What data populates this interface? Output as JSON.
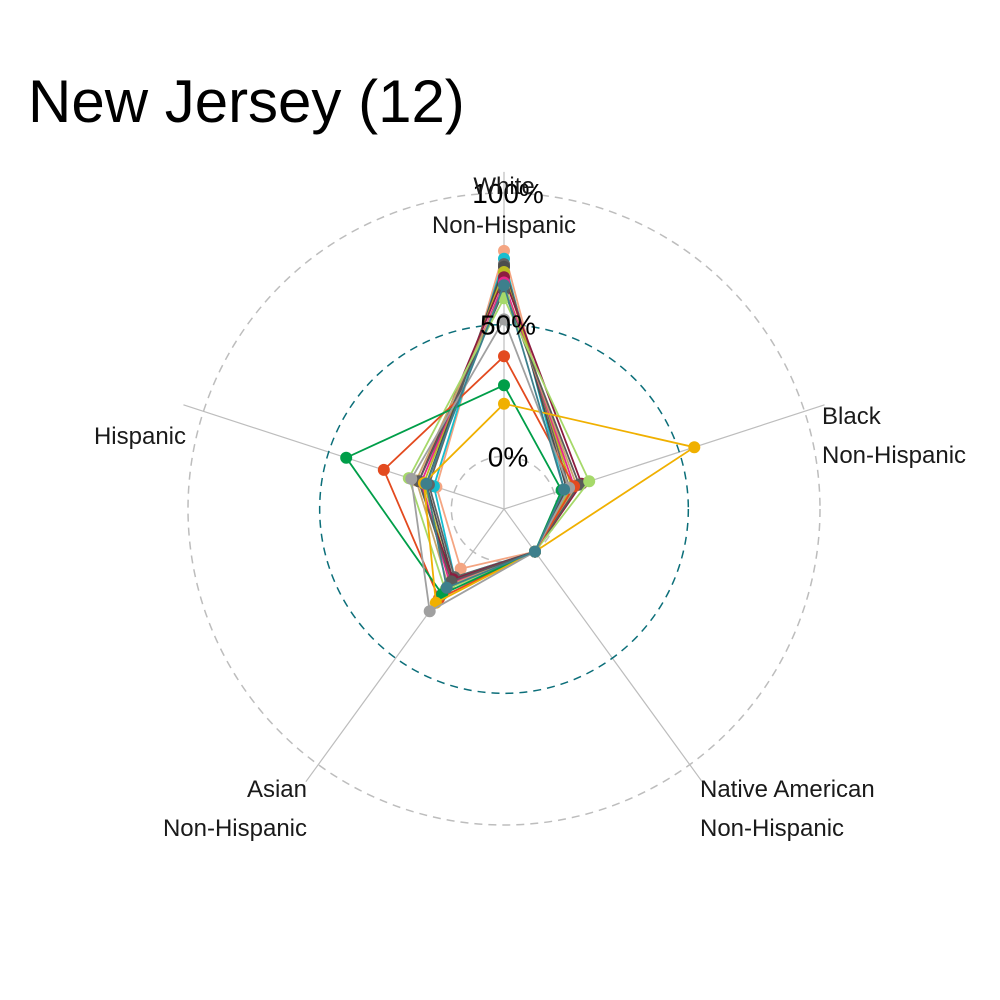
{
  "chart_data": {
    "type": "radar",
    "title": "New Jersey (12)",
    "axes": [
      {
        "line1": "White",
        "line2": "Non-Hispanic"
      },
      {
        "line1": "Black",
        "line2": "Non-Hispanic"
      },
      {
        "line1": "Native American",
        "line2": "Non-Hispanic"
      },
      {
        "line1": "Asian",
        "line2": "Non-Hispanic"
      },
      {
        "line1": "Hispanic",
        "line2": ""
      }
    ],
    "grid_labels": [
      "0%",
      "50%",
      "100%"
    ],
    "rlim": [
      -20,
      100
    ],
    "grid_values": [
      0,
      50,
      100
    ],
    "grid_colors": {
      "outer": "#bdbdbd",
      "middle": "#0b6e79",
      "inner": "#bdbdbd",
      "spokes": "#bdbdbd"
    },
    "legend": "none",
    "series": [
      {
        "color": "#f4a582",
        "values": [
          78,
          5,
          0,
          8,
          7
        ]
      },
      {
        "color": "#17becf",
        "values": [
          75,
          4,
          0,
          12,
          8
        ]
      },
      {
        "color": "#636363",
        "values": [
          73,
          6,
          0,
          12,
          10
        ]
      },
      {
        "color": "#4d4d4d",
        "values": [
          72,
          5,
          0,
          13,
          11
        ]
      },
      {
        "color": "#bcbd22",
        "values": [
          70,
          7,
          0,
          14,
          12
        ]
      },
      {
        "color": "#8c1d40",
        "values": [
          68,
          11,
          0,
          13,
          14
        ]
      },
      {
        "color": "#e7298a",
        "values": [
          66,
          8,
          0,
          15,
          13
        ]
      },
      {
        "color": "#c7a76c",
        "values": [
          64,
          9,
          0,
          16,
          15
        ]
      },
      {
        "color": "#5a5a5a",
        "values": [
          63,
          10,
          0,
          14,
          14
        ]
      },
      {
        "color": "#a6d96a",
        "values": [
          60,
          14,
          0,
          18,
          18
        ]
      },
      {
        "color": "#e34a1f",
        "values": [
          38,
          8,
          0,
          22,
          28
        ]
      },
      {
        "color": "#009e49",
        "values": [
          27,
          3,
          0,
          20,
          43
        ]
      },
      {
        "color": "#f0b000",
        "values": [
          20,
          56,
          0,
          24,
          12
        ]
      },
      {
        "color": "#a0a0a0",
        "values": [
          52,
          6,
          0,
          28,
          17
        ]
      },
      {
        "color": "#3d7f8c",
        "values": [
          65,
          4,
          0,
          17,
          11
        ]
      }
    ]
  }
}
